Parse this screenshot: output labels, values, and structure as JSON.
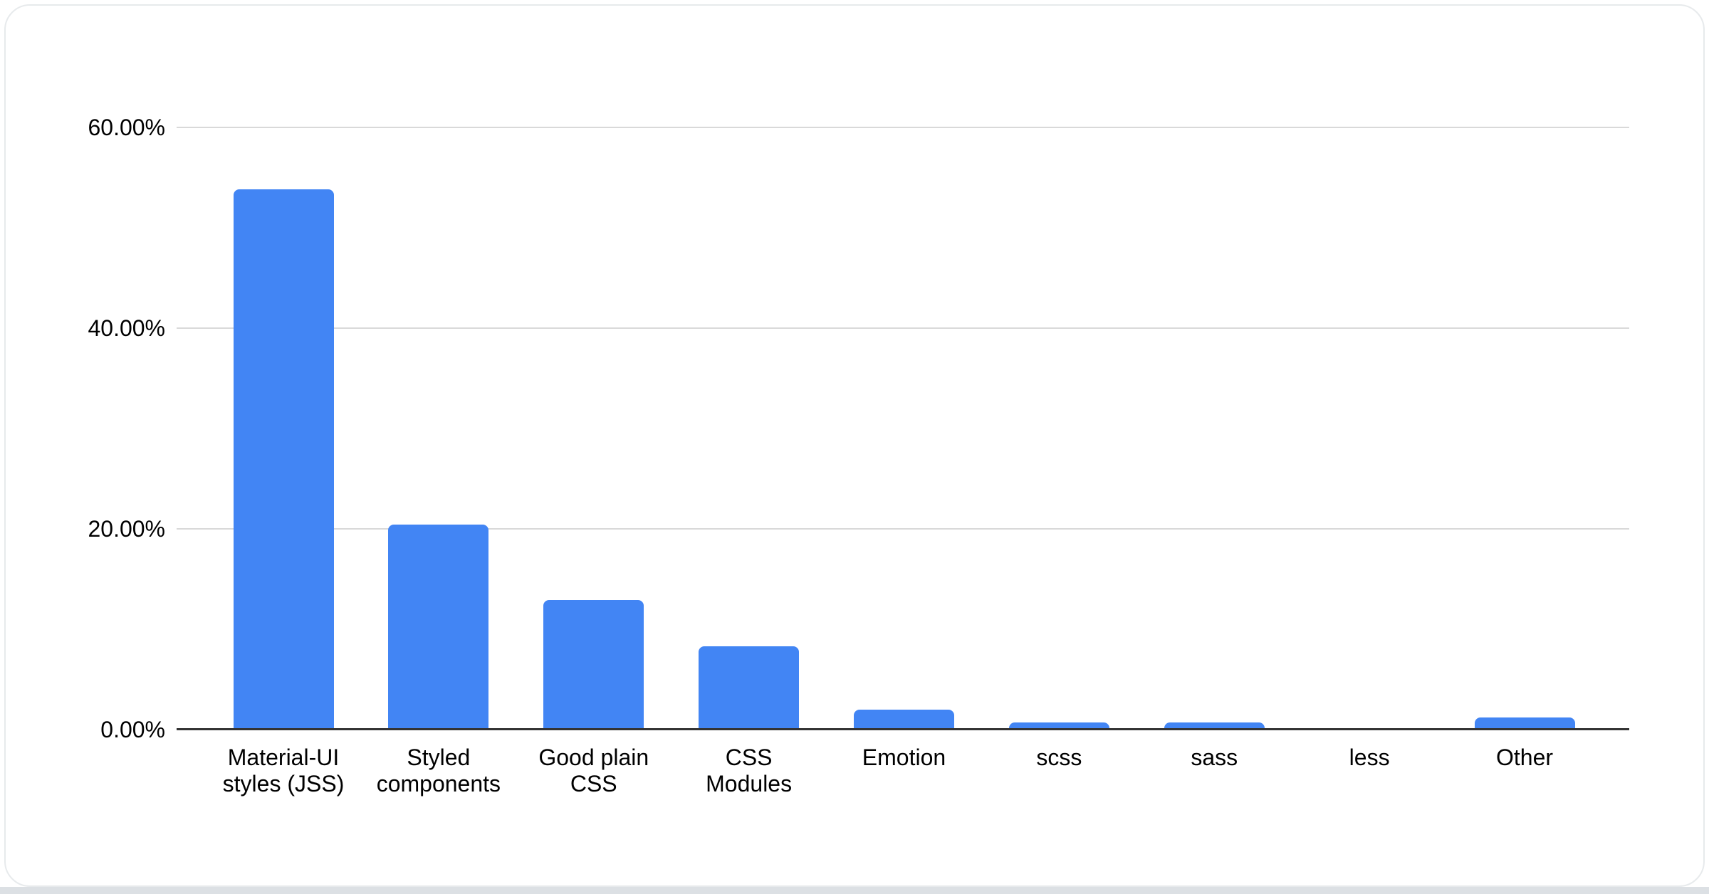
{
  "chart_data": {
    "type": "bar",
    "categories": [
      "Material-UI styles (JSS)",
      "Styled components",
      "Good plain CSS",
      "CSS Modules",
      "Emotion",
      "scss",
      "sass",
      "less",
      "Other"
    ],
    "values": [
      53.8,
      20.4,
      12.9,
      8.3,
      2.0,
      0.7,
      0.7,
      0.1,
      1.2
    ],
    "label_lines": [
      [
        "Material-UI",
        "styles (JSS)"
      ],
      [
        "Styled",
        "components"
      ],
      [
        "Good plain",
        "CSS"
      ],
      [
        "CSS",
        "Modules"
      ],
      [
        "Emotion"
      ],
      [
        "scss"
      ],
      [
        "sass"
      ],
      [
        "less"
      ],
      [
        "Other"
      ]
    ],
    "y_ticks": [
      {
        "label": "0.00%",
        "value": 0
      },
      {
        "label": "20.00%",
        "value": 20
      },
      {
        "label": "40.00%",
        "value": 40
      },
      {
        "label": "60.00%",
        "value": 60
      }
    ],
    "ylim": [
      0,
      64
    ],
    "unit": "%",
    "grid": true,
    "legend_position": "none",
    "bar_color": "#4285f4",
    "grid_color": "#d9d9d9",
    "axis_color": "#333333",
    "text_color": "#000000",
    "card_background": "#ffffff",
    "card_border_color": "#e7eaec",
    "page_bottom_strip_color": "#dce0e4"
  }
}
